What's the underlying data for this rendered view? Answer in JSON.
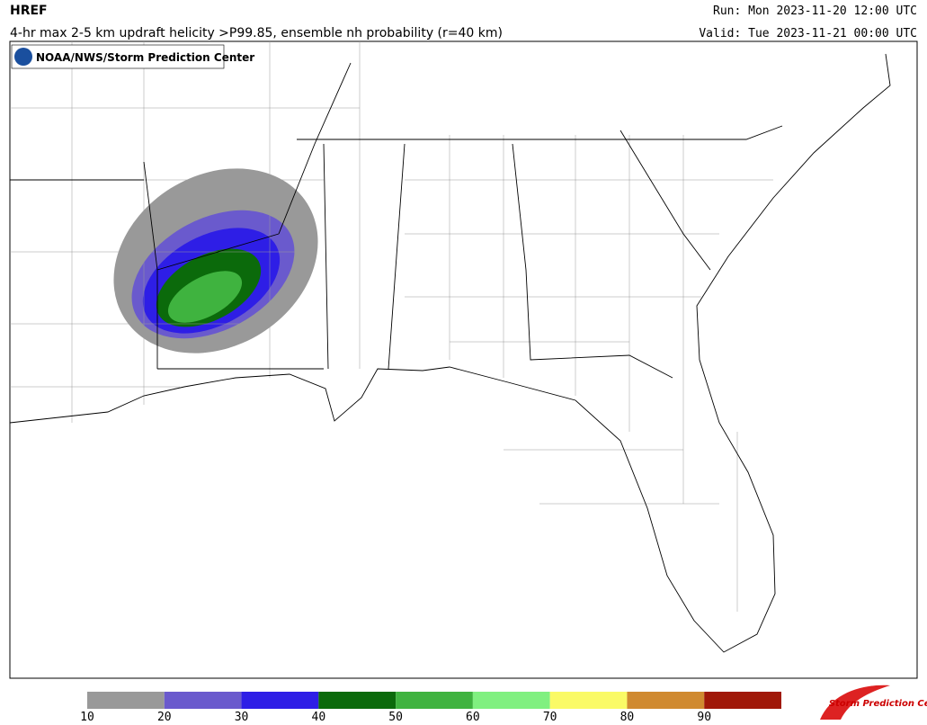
{
  "header": {
    "title": "HREF",
    "subtitle": "4-hr max 2-5 km updraft helicity >P99.85, ensemble nh probability (r=40 km)",
    "run": "Run: Mon 2023-11-20 12:00 UTC",
    "valid": "Valid: Tue 2023-11-21 00:00 UTC"
  },
  "map": {
    "credit": "NOAA/NWS/Storm Prediction Center"
  },
  "legend": {
    "levels": [
      {
        "label": "10",
        "color": "#999999"
      },
      {
        "label": "20",
        "color": "#6a5acd"
      },
      {
        "label": "30",
        "color": "#2e1ee6"
      },
      {
        "label": "40",
        "color": "#0b6a0b"
      },
      {
        "label": "50",
        "color": "#3fb33f"
      },
      {
        "label": "60",
        "color": "#80f080"
      },
      {
        "label": "70",
        "color": "#fafa66"
      },
      {
        "label": "80",
        "color": "#d08a30"
      },
      {
        "label": "90",
        "color": "#a01808"
      }
    ]
  },
  "footer": {
    "logo": "Storm Prediction Center"
  }
}
